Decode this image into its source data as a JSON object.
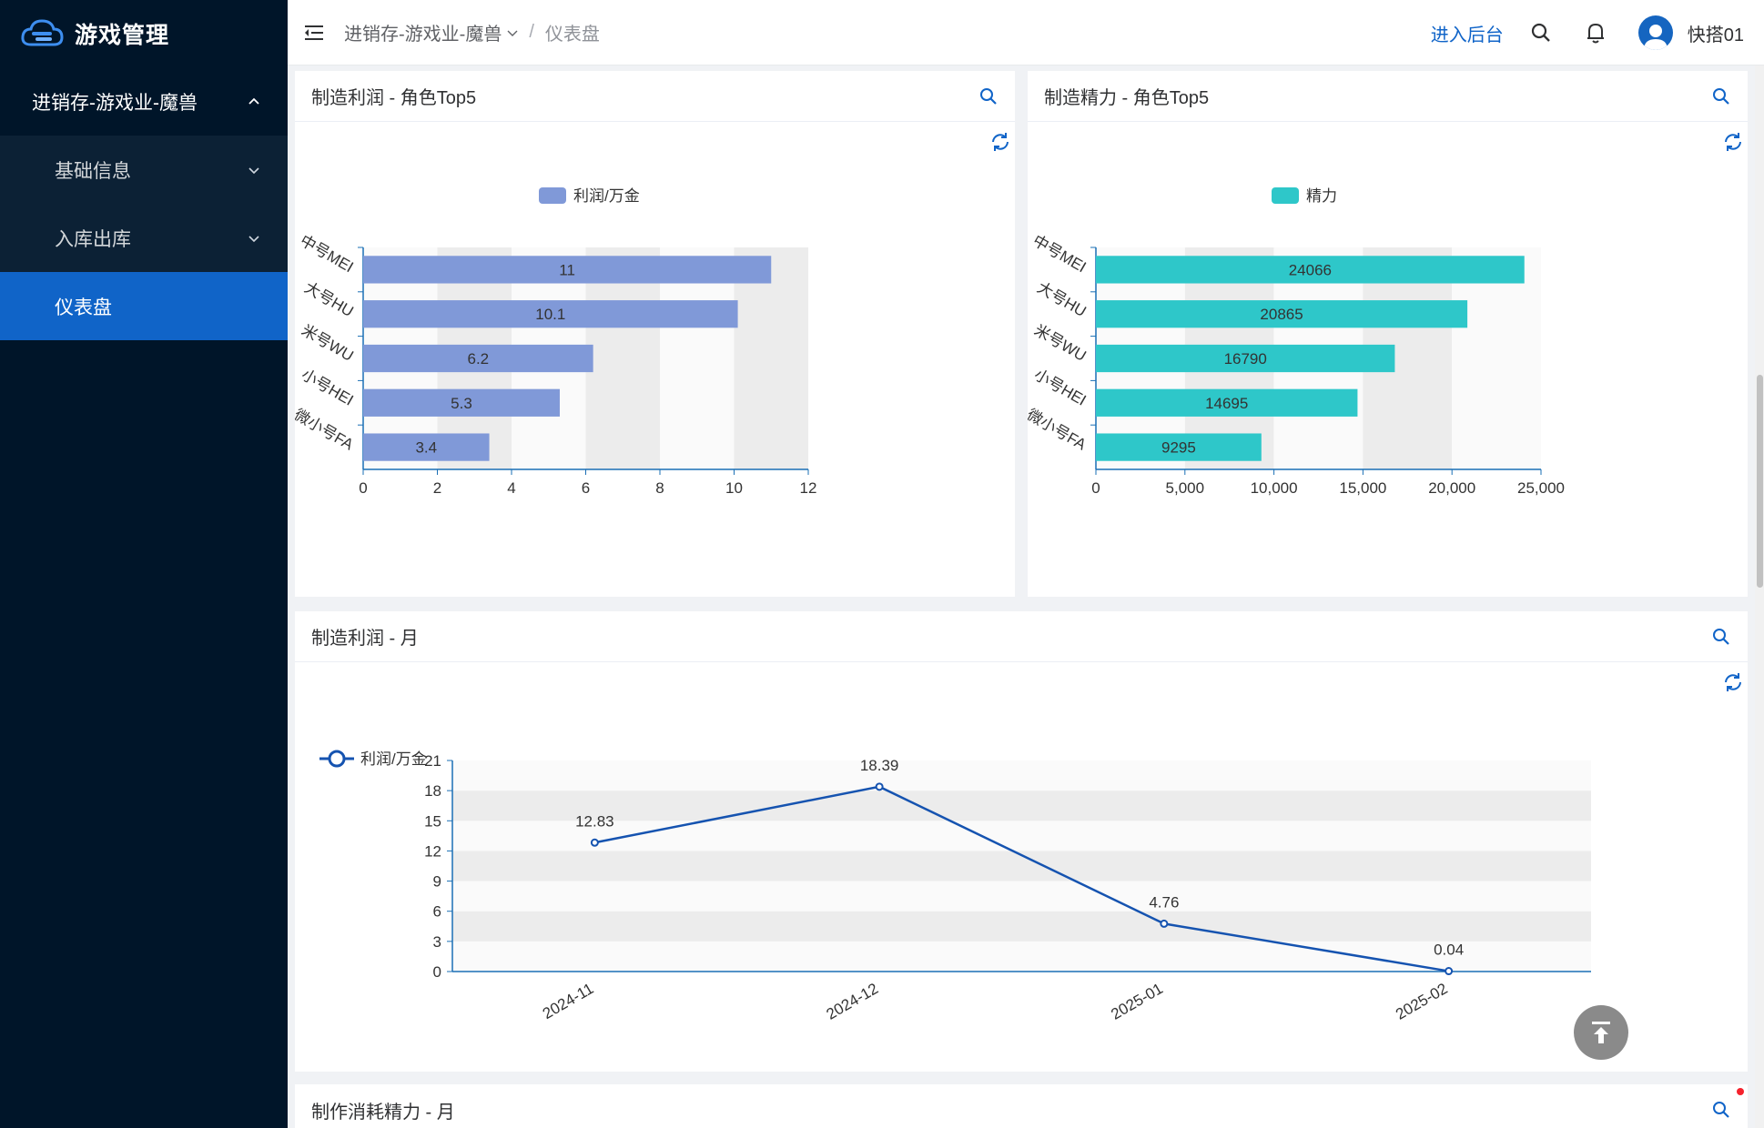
{
  "app": {
    "title": "游戏管理"
  },
  "sidebar": {
    "group": {
      "label": "进销存-游戏业-魔兽"
    },
    "items": [
      {
        "label": "基础信息",
        "has_arrow": true
      },
      {
        "label": "入库出库",
        "has_arrow": true
      },
      {
        "label": "仪表盘",
        "active": true
      }
    ]
  },
  "header": {
    "breadcrumb": {
      "parent": "进销存-游戏业-魔兽",
      "separator": "/",
      "current": "仪表盘"
    },
    "backend_link": "进入后台",
    "username": "快搭01"
  },
  "colors": {
    "sidebar_bg": "#001529",
    "active": "#1064c8",
    "bar_profit": "#8099d8",
    "bar_energy": "#2ec7c9",
    "line": "#1553b0"
  },
  "cards": {
    "profit_top5": {
      "title": "制造利润 - 角色Top5"
    },
    "energy_top5": {
      "title": "制造精力 - 角色Top5"
    },
    "profit_month": {
      "title": "制造利润 - 月"
    },
    "energy_month": {
      "title": "制作消耗精力 - 月"
    }
  },
  "chart_data": [
    {
      "type": "bar",
      "orientation": "horizontal",
      "legend": [
        "利润/万金"
      ],
      "categories": [
        "中号MEI",
        "大号HU",
        "米号WU",
        "小号HEI",
        "微小号FA"
      ],
      "series": [
        {
          "name": "利润/万金",
          "values": [
            11,
            10.1,
            6.2,
            5.3,
            3.4
          ]
        }
      ],
      "xlim": [
        0,
        12
      ],
      "xticks": [
        "0",
        "2",
        "4",
        "6",
        "8",
        "10",
        "12"
      ],
      "grid": "alternating vertical bands"
    },
    {
      "type": "bar",
      "orientation": "horizontal",
      "legend": [
        "精力"
      ],
      "categories": [
        "中号MEI",
        "大号HU",
        "米号WU",
        "小号HEI",
        "微小号FA"
      ],
      "series": [
        {
          "name": "精力",
          "values": [
            24066,
            20865,
            16790,
            14695,
            9295
          ]
        }
      ],
      "xlim": [
        0,
        25000
      ],
      "xticks": [
        "0",
        "5,000",
        "10,000",
        "15,000",
        "20,000",
        "25,000"
      ],
      "grid": "alternating vertical bands"
    },
    {
      "type": "line",
      "legend": [
        "利润/万金"
      ],
      "x": [
        "2024-11",
        "2024-12",
        "2025-01",
        "2025-02"
      ],
      "series": [
        {
          "name": "利润/万金",
          "values": [
            12.83,
            18.39,
            4.76,
            0.04
          ]
        }
      ],
      "ylim": [
        0,
        21
      ],
      "yticks": [
        "0",
        "3",
        "6",
        "9",
        "12",
        "15",
        "18",
        "21"
      ],
      "grid": "alternating horizontal bands"
    }
  ]
}
